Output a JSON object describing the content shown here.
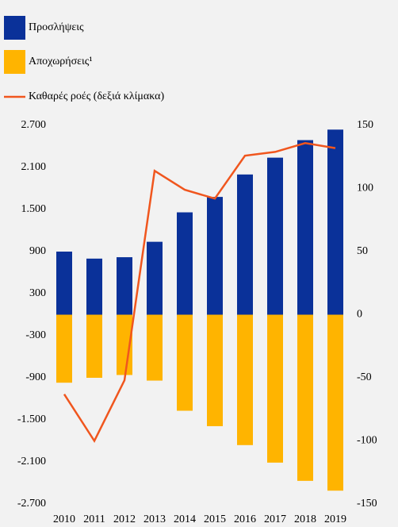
{
  "chart_data": {
    "type": "bar",
    "categories": [
      "2010",
      "2011",
      "2012",
      "2013",
      "2014",
      "2015",
      "2016",
      "2017",
      "2018",
      "2019"
    ],
    "series": [
      {
        "name": "Προσλήψεις",
        "type": "bar",
        "color": "#0a3199",
        "values": [
          900,
          800,
          820,
          1040,
          1460,
          1680,
          2000,
          2240,
          2490,
          2640
        ]
      },
      {
        "name": "Αποχωρήσεις¹",
        "type": "bar",
        "color": "#ffb400",
        "values": [
          -970,
          -900,
          -860,
          -940,
          -1370,
          -1590,
          -1860,
          -2110,
          -2370,
          -2510
        ]
      },
      {
        "name": "Καθαρές ροές (δεξιά κλίμακα)",
        "type": "line",
        "axis": "y2",
        "color": "#f0561e",
        "values": [
          -63,
          -100,
          -52,
          114,
          99,
          92,
          126,
          129,
          136,
          132
        ]
      }
    ],
    "ylim": [
      -2700,
      2700
    ],
    "yticks": [
      {
        "value": 2700,
        "label": "2.700"
      },
      {
        "value": 2100,
        "label": "2.100"
      },
      {
        "value": 1500,
        "label": "1.500"
      },
      900,
      300,
      -300,
      -900,
      {
        "value": -1500,
        "label": "-1.500"
      },
      {
        "value": -2100,
        "label": "-2.100"
      },
      {
        "value": -2700,
        "label": "-2.700"
      }
    ],
    "y2lim": [
      -150,
      150
    ],
    "y2ticks": [
      150,
      100,
      50,
      0,
      -50,
      -100,
      -150
    ],
    "grid": false
  }
}
